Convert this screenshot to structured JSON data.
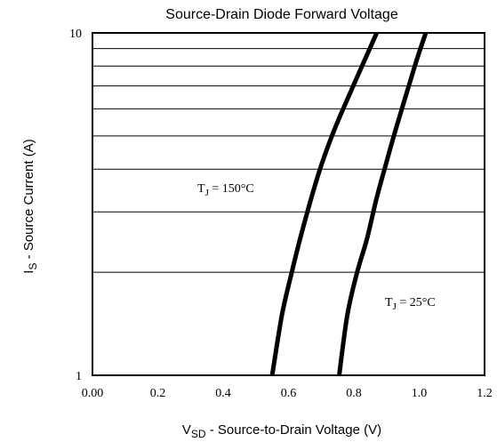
{
  "chart_data": {
    "type": "line",
    "title": "Source-Drain Diode Forward Voltage",
    "xlabel": {
      "main": "V",
      "sub": "SD",
      "rest": "  -  Source-to-Drain Voltage (V)"
    },
    "ylabel": {
      "main": "I",
      "sub": "S",
      "rest": "  -  Source Current (A)"
    },
    "xlim": [
      0.0,
      1.2
    ],
    "ylim": [
      1,
      10
    ],
    "y_scale": "log",
    "grid": true,
    "x_tick_labels": [
      "0.00",
      "0.2",
      "0.4",
      "0.6",
      "0.8",
      "1.0",
      "1.2"
    ],
    "x_ticks": [
      0.0,
      0.2,
      0.4,
      0.6,
      0.8,
      1.0,
      1.2
    ],
    "y_tick_labels": [
      "1",
      "10"
    ],
    "y_ticks": [
      1,
      10
    ],
    "y_gridlines": [
      1,
      2,
      3,
      4,
      5,
      6,
      7,
      8,
      9,
      10
    ],
    "series": [
      {
        "label_main": "T",
        "label_sub": "J",
        "label_rest": " = 150°C",
        "x": [
          0.55,
          0.58,
          0.61,
          0.64,
          0.67,
          0.7,
          0.74,
          0.78,
          0.83,
          0.87
        ],
        "y": [
          1.0,
          1.5,
          2.0,
          2.6,
          3.3,
          4.1,
          5.2,
          6.4,
          8.2,
          10.0
        ]
      },
      {
        "label_main": "T",
        "label_sub": "J",
        "label_rest": " = 25°C",
        "x": [
          0.755,
          0.78,
          0.81,
          0.84,
          0.87,
          0.9,
          0.93,
          0.96,
          0.99,
          1.02
        ],
        "y": [
          1.0,
          1.5,
          2.0,
          2.5,
          3.3,
          4.2,
          5.3,
          6.6,
          8.2,
          10.0
        ]
      }
    ]
  }
}
